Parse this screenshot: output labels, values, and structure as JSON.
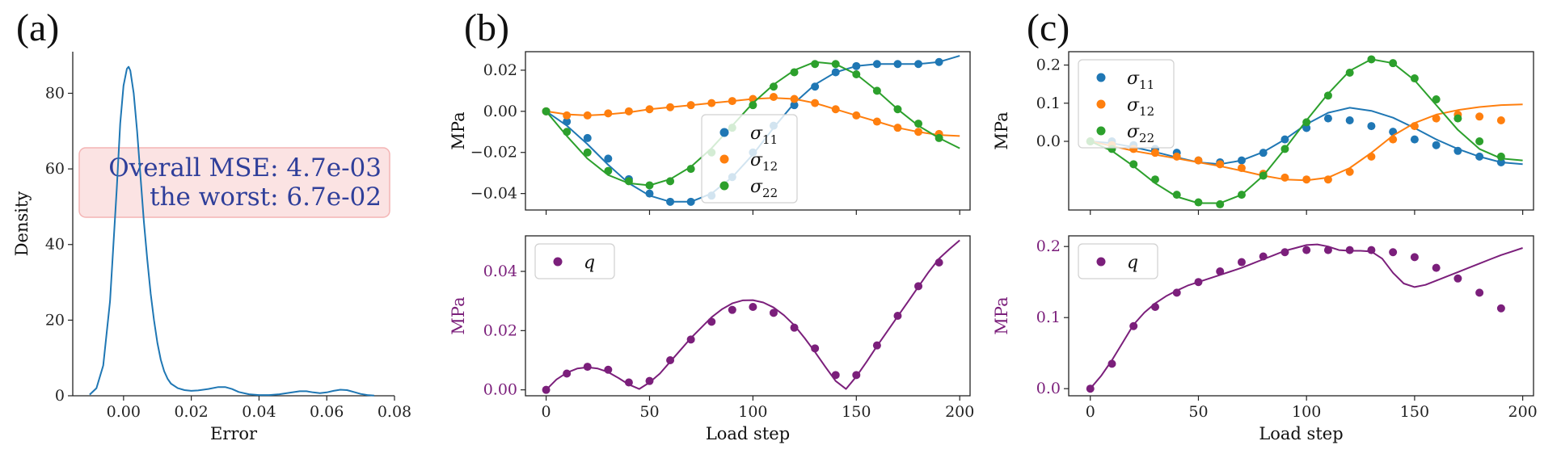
{
  "panels": {
    "a": {
      "label": "(a)"
    },
    "b": {
      "label": "(b)"
    },
    "c": {
      "label": "(c)"
    }
  },
  "colors": {
    "blue": "#1f77b4",
    "orange": "#ff7f0e",
    "green": "#2ca02c",
    "purple": "#7b1f7b",
    "mse_text": "#2f3f9a",
    "mse_box_fill": "#fbe3e3",
    "mse_box_stroke": "#f4b4b4"
  },
  "chart_data": [
    {
      "id": "a",
      "type": "line",
      "xlabel": "Error",
      "ylabel": "Density",
      "xlim": [
        -0.015,
        0.08
      ],
      "ylim": [
        0,
        91
      ],
      "xticks": [
        "0.00",
        "0.02",
        "0.04",
        "0.06",
        "0.08"
      ],
      "xtick_values": [
        0,
        0.02,
        0.04,
        0.06,
        0.08
      ],
      "yticks": [
        "0",
        "20",
        "40",
        "60",
        "80"
      ],
      "ytick_values": [
        0,
        20,
        40,
        60,
        80
      ],
      "annotation": {
        "line1": "Overall MSE: 4.7e-03",
        "line2": "the worst: 6.7e-02"
      },
      "series": [
        {
          "color": "blue",
          "x": [
            -0.01,
            -0.008,
            -0.006,
            -0.004,
            -0.002,
            -0.001,
            0.0,
            0.001,
            0.0015,
            0.002,
            0.003,
            0.004,
            0.005,
            0.006,
            0.007,
            0.008,
            0.009,
            0.01,
            0.011,
            0.012,
            0.013,
            0.014,
            0.016,
            0.018,
            0.02,
            0.022,
            0.025,
            0.028,
            0.03,
            0.032,
            0.034,
            0.037,
            0.04,
            0.043,
            0.046,
            0.049,
            0.052,
            0.054,
            0.056,
            0.058,
            0.06,
            0.062,
            0.064,
            0.066,
            0.068,
            0.07,
            0.072,
            0.074
          ],
          "y": [
            0.3,
            2,
            8,
            25,
            55,
            72,
            82,
            86.5,
            87,
            86,
            80,
            70,
            58,
            46,
            36,
            27,
            20,
            14,
            9.5,
            6.5,
            4.5,
            3.2,
            2,
            1.5,
            1.3,
            1.4,
            1.8,
            2.3,
            2.3,
            1.8,
            1.0,
            0.4,
            0.2,
            0.2,
            0.4,
            0.8,
            1.2,
            1.2,
            0.9,
            0.7,
            0.9,
            1.3,
            1.6,
            1.5,
            1.0,
            0.5,
            0.2,
            0.05
          ]
        }
      ]
    },
    {
      "id": "b-top",
      "type": "scatter",
      "ylabel": "MPa",
      "xlim": [
        -10,
        205
      ],
      "ylim": [
        -0.048,
        0.029
      ],
      "yticks": [
        "−0.04",
        "−0.02",
        "0.00",
        "0.02"
      ],
      "ytick_values": [
        -0.04,
        -0.02,
        0,
        0.02
      ],
      "legend_position": "center-right",
      "series": [
        {
          "name": "σ11",
          "color": "blue",
          "points_x": [
            0,
            10,
            20,
            30,
            40,
            50,
            60,
            70,
            80,
            90,
            100,
            110,
            120,
            130,
            140,
            150,
            160,
            170,
            180,
            190
          ],
          "points_y": [
            0,
            -0.005,
            -0.013,
            -0.023,
            -0.033,
            -0.04,
            -0.044,
            -0.044,
            -0.041,
            -0.032,
            -0.02,
            -0.007,
            0.003,
            0.012,
            0.019,
            0.022,
            0.023,
            0.023,
            0.023,
            0.024
          ],
          "line_x": [
            0,
            10,
            20,
            30,
            40,
            50,
            60,
            70,
            80,
            90,
            100,
            110,
            120,
            130,
            140,
            150,
            160,
            170,
            180,
            190,
            200
          ],
          "line_y": [
            0,
            -0.007,
            -0.016,
            -0.026,
            -0.035,
            -0.041,
            -0.044,
            -0.044,
            -0.04,
            -0.032,
            -0.021,
            -0.008,
            0.004,
            0.013,
            0.019,
            0.022,
            0.023,
            0.023,
            0.023,
            0.024,
            0.027
          ]
        },
        {
          "name": "σ12",
          "color": "orange",
          "points_x": [
            0,
            10,
            20,
            30,
            40,
            50,
            60,
            70,
            80,
            90,
            100,
            110,
            120,
            130,
            140,
            150,
            160,
            170,
            180,
            190
          ],
          "points_y": [
            0,
            -0.002,
            -0.002,
            -0.001,
            0,
            0.001,
            0.002,
            0.003,
            0.004,
            0.005,
            0.006,
            0.007,
            0.006,
            0.004,
            0.001,
            -0.002,
            -0.005,
            -0.008,
            -0.01,
            -0.011
          ],
          "line_x": [
            0,
            10,
            20,
            30,
            40,
            50,
            60,
            70,
            80,
            90,
            100,
            110,
            120,
            130,
            140,
            150,
            160,
            170,
            180,
            190,
            200
          ],
          "line_y": [
            0,
            -0.0015,
            -0.002,
            -0.0015,
            -0.0005,
            0.001,
            0.002,
            0.003,
            0.004,
            0.005,
            0.006,
            0.0065,
            0.006,
            0.004,
            0.001,
            -0.002,
            -0.005,
            -0.008,
            -0.01,
            -0.0115,
            -0.012
          ]
        },
        {
          "name": "σ22",
          "color": "green",
          "points_x": [
            0,
            10,
            20,
            30,
            40,
            50,
            60,
            70,
            80,
            90,
            100,
            110,
            120,
            130,
            140,
            150,
            160,
            170,
            180,
            190
          ],
          "points_y": [
            0,
            -0.01,
            -0.02,
            -0.029,
            -0.034,
            -0.036,
            -0.034,
            -0.028,
            -0.02,
            -0.008,
            0.003,
            0.012,
            0.019,
            0.023,
            0.023,
            0.018,
            0.01,
            0.001,
            -0.006,
            -0.013
          ],
          "line_x": [
            0,
            10,
            20,
            30,
            40,
            50,
            60,
            70,
            80,
            90,
            100,
            110,
            120,
            130,
            140,
            150,
            160,
            170,
            180,
            190,
            200
          ],
          "line_y": [
            0,
            -0.012,
            -0.023,
            -0.031,
            -0.035,
            -0.036,
            -0.033,
            -0.027,
            -0.018,
            -0.007,
            0.004,
            0.013,
            0.02,
            0.024,
            0.023,
            0.018,
            0.01,
            0.001,
            -0.007,
            -0.013,
            -0.018
          ]
        }
      ]
    },
    {
      "id": "b-bottom",
      "type": "scatter",
      "xlabel": "Load step",
      "ylabel": "MPa",
      "xlim": [
        -10,
        205
      ],
      "ylim": [
        -0.002,
        0.052
      ],
      "xticks": [
        "0",
        "50",
        "100",
        "150",
        "200"
      ],
      "xtick_values": [
        0,
        50,
        100,
        150,
        200
      ],
      "yticks": [
        "0.00",
        "0.02",
        "0.04"
      ],
      "ytick_values": [
        0,
        0.02,
        0.04
      ],
      "legend_position": "top-left",
      "series": [
        {
          "name": "q",
          "color": "purple",
          "points_x": [
            0,
            10,
            20,
            30,
            40,
            50,
            60,
            70,
            80,
            90,
            100,
            110,
            120,
            130,
            140,
            150,
            160,
            170,
            180,
            190
          ],
          "points_y": [
            0,
            0.0055,
            0.0078,
            0.0068,
            0.0025,
            0.003,
            0.01,
            0.017,
            0.023,
            0.027,
            0.028,
            0.026,
            0.021,
            0.014,
            0.005,
            0.005,
            0.015,
            0.025,
            0.035,
            0.043
          ],
          "line_x": [
            0,
            5,
            10,
            15,
            20,
            25,
            30,
            35,
            40,
            45,
            50,
            55,
            60,
            65,
            70,
            75,
            80,
            85,
            90,
            95,
            100,
            105,
            110,
            115,
            120,
            125,
            130,
            135,
            140,
            145,
            150,
            155,
            160,
            165,
            170,
            175,
            180,
            185,
            190,
            195,
            200
          ],
          "line_y": [
            0,
            0.0035,
            0.0058,
            0.0072,
            0.0076,
            0.0072,
            0.006,
            0.004,
            0.0018,
            0.0003,
            0.0025,
            0.0055,
            0.0095,
            0.0135,
            0.0175,
            0.021,
            0.0245,
            0.0272,
            0.0292,
            0.0302,
            0.0303,
            0.0295,
            0.0278,
            0.0252,
            0.0218,
            0.0175,
            0.0128,
            0.0078,
            0.003,
            0.0003,
            0.0045,
            0.0095,
            0.0148,
            0.0198,
            0.0248,
            0.0298,
            0.0348,
            0.0398,
            0.0443,
            0.0475,
            0.0505
          ]
        }
      ]
    },
    {
      "id": "c-top",
      "type": "scatter",
      "ylabel": "MPa",
      "xlim": [
        -10,
        205
      ],
      "ylim": [
        -0.18,
        0.235
      ],
      "yticks": [
        "0.0",
        "0.1",
        "0.2"
      ],
      "ytick_values": [
        0,
        0.1,
        0.2
      ],
      "legend_position": "top-left",
      "series": [
        {
          "name": "σ11",
          "color": "blue",
          "points_x": [
            0,
            10,
            20,
            30,
            40,
            50,
            60,
            70,
            80,
            90,
            100,
            110,
            120,
            130,
            140,
            150,
            160,
            170,
            180,
            190
          ],
          "points_y": [
            0,
            0,
            -0.01,
            -0.02,
            -0.03,
            -0.05,
            -0.055,
            -0.05,
            -0.03,
            0.005,
            0.035,
            0.06,
            0.055,
            0.04,
            0.025,
            0.005,
            -0.01,
            -0.025,
            -0.04,
            -0.055
          ],
          "line_x": [
            0,
            10,
            20,
            30,
            40,
            50,
            60,
            70,
            80,
            90,
            100,
            110,
            120,
            130,
            140,
            150,
            160,
            170,
            180,
            190,
            200
          ],
          "line_y": [
            0,
            -0.005,
            -0.015,
            -0.028,
            -0.042,
            -0.055,
            -0.06,
            -0.05,
            -0.028,
            0.005,
            0.045,
            0.075,
            0.088,
            0.08,
            0.062,
            0.035,
            0.005,
            -0.02,
            -0.04,
            -0.055,
            -0.06
          ]
        },
        {
          "name": "σ12",
          "color": "orange",
          "points_x": [
            0,
            10,
            20,
            30,
            40,
            50,
            60,
            70,
            80,
            90,
            100,
            110,
            120,
            130,
            140,
            150,
            160,
            170,
            180,
            190
          ],
          "points_y": [
            0,
            -0.01,
            -0.02,
            -0.03,
            -0.04,
            -0.05,
            -0.06,
            -0.07,
            -0.085,
            -0.095,
            -0.1,
            -0.1,
            -0.08,
            -0.04,
            0.005,
            0.04,
            0.06,
            0.07,
            0.065,
            0.055
          ],
          "line_x": [
            0,
            10,
            20,
            30,
            40,
            50,
            60,
            70,
            80,
            90,
            100,
            110,
            120,
            130,
            140,
            150,
            160,
            170,
            180,
            190,
            200
          ],
          "line_y": [
            0,
            -0.012,
            -0.025,
            -0.035,
            -0.045,
            -0.055,
            -0.065,
            -0.077,
            -0.09,
            -0.1,
            -0.102,
            -0.095,
            -0.07,
            -0.03,
            0.015,
            0.048,
            0.07,
            0.082,
            0.09,
            0.095,
            0.097
          ]
        },
        {
          "name": "σ22",
          "color": "green",
          "points_x": [
            0,
            10,
            20,
            30,
            40,
            50,
            60,
            70,
            80,
            90,
            100,
            110,
            120,
            130,
            140,
            150,
            160,
            170,
            180,
            190
          ],
          "points_y": [
            0,
            -0.02,
            -0.06,
            -0.1,
            -0.14,
            -0.16,
            -0.165,
            -0.14,
            -0.09,
            -0.02,
            0.05,
            0.12,
            0.18,
            0.215,
            0.205,
            0.165,
            0.11,
            0.06,
            0.0,
            -0.04
          ],
          "line_x": [
            0,
            10,
            20,
            30,
            40,
            50,
            60,
            70,
            80,
            90,
            100,
            110,
            120,
            130,
            140,
            150,
            160,
            170,
            180,
            190,
            200
          ],
          "line_y": [
            0,
            -0.025,
            -0.065,
            -0.11,
            -0.145,
            -0.162,
            -0.162,
            -0.14,
            -0.09,
            -0.02,
            0.055,
            0.125,
            0.185,
            0.215,
            0.205,
            0.16,
            0.095,
            0.03,
            -0.02,
            -0.045,
            -0.05
          ]
        }
      ]
    },
    {
      "id": "c-bottom",
      "type": "scatter",
      "xlabel": "Load step",
      "ylabel": "MPa",
      "xlim": [
        -10,
        205
      ],
      "ylim": [
        -0.01,
        0.215
      ],
      "xticks": [
        "0",
        "50",
        "100",
        "150",
        "200"
      ],
      "xtick_values": [
        0,
        50,
        100,
        150,
        200
      ],
      "yticks": [
        "0.0",
        "0.1",
        "0.2"
      ],
      "ytick_values": [
        0,
        0.1,
        0.2
      ],
      "legend_position": "top-left",
      "series": [
        {
          "name": "q",
          "color": "purple",
          "points_x": [
            0,
            10,
            20,
            30,
            40,
            50,
            60,
            70,
            80,
            90,
            100,
            110,
            120,
            130,
            140,
            150,
            160,
            170,
            180,
            190
          ],
          "points_y": [
            0,
            0.035,
            0.088,
            0.115,
            0.135,
            0.15,
            0.165,
            0.178,
            0.186,
            0.192,
            0.195,
            0.195,
            0.195,
            0.195,
            0.192,
            0.185,
            0.17,
            0.155,
            0.135,
            0.113
          ],
          "line_x": [
            0,
            5,
            10,
            15,
            20,
            25,
            30,
            35,
            40,
            45,
            50,
            55,
            60,
            65,
            70,
            75,
            80,
            85,
            90,
            95,
            100,
            105,
            110,
            115,
            120,
            125,
            130,
            135,
            140,
            145,
            150,
            155,
            160,
            165,
            170,
            175,
            180,
            185,
            190,
            195,
            200
          ],
          "line_y": [
            0,
            0.018,
            0.04,
            0.065,
            0.09,
            0.107,
            0.12,
            0.13,
            0.138,
            0.145,
            0.15,
            0.155,
            0.16,
            0.165,
            0.17,
            0.176,
            0.182,
            0.188,
            0.194,
            0.198,
            0.202,
            0.203,
            0.2,
            0.195,
            0.194,
            0.194,
            0.193,
            0.183,
            0.163,
            0.148,
            0.143,
            0.146,
            0.152,
            0.158,
            0.164,
            0.17,
            0.176,
            0.182,
            0.188,
            0.193,
            0.198
          ]
        }
      ]
    }
  ]
}
